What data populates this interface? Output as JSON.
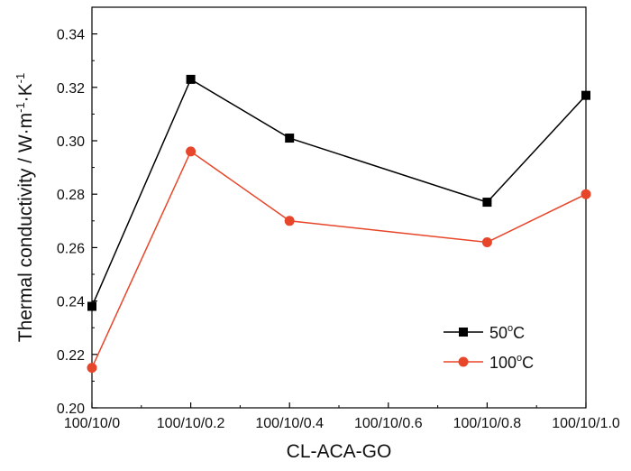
{
  "chart_data": {
    "type": "line",
    "xlabel": "CL-ACA-GO",
    "ylabel": {
      "base": "Thermal conductivity / W·m",
      "sup1": "-1",
      "mid": "·K",
      "sup2": "-1"
    },
    "categories": [
      "100/10/0",
      "100/10/0.2",
      "100/10/0.4",
      "100/10/0.6",
      "100/10/0.8",
      "100/10/1.0"
    ],
    "x": [
      0,
      0.2,
      0.4,
      0.6,
      0.8,
      1.0
    ],
    "xlim": [
      0,
      1.0
    ],
    "ylim": [
      0.2,
      0.35
    ],
    "yticks": [
      0.2,
      0.22,
      0.24,
      0.26,
      0.28,
      0.3,
      0.32,
      0.34
    ],
    "ytick_labels": [
      "0.20",
      "0.22",
      "0.24",
      "0.26",
      "0.28",
      "0.30",
      "0.32",
      "0.34"
    ],
    "grid": false,
    "legend_position": "bottom-right",
    "series": [
      {
        "name": {
          "value": "50",
          "unit": "C",
          "degree": "o"
        },
        "marker": "square",
        "color": "#000000",
        "x": [
          0,
          0.2,
          0.4,
          0.8,
          1.0
        ],
        "y": [
          0.238,
          0.323,
          0.301,
          0.277,
          0.317
        ]
      },
      {
        "name": {
          "value": "100",
          "unit": "C",
          "degree": "o"
        },
        "marker": "circle",
        "color": "#e8462a",
        "x": [
          0,
          0.2,
          0.4,
          0.8,
          1.0
        ],
        "y": [
          0.215,
          0.296,
          0.27,
          0.262,
          0.28
        ]
      }
    ]
  }
}
